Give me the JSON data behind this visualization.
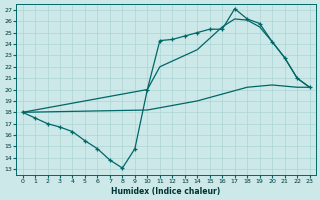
{
  "xlabel": "Humidex (Indice chaleur)",
  "bg_color": "#cce8e8",
  "line_color": "#006666",
  "grid_color": "#aad4d4",
  "xlim": [
    -0.5,
    23.5
  ],
  "ylim": [
    12.5,
    27.5
  ],
  "yticks": [
    13,
    14,
    15,
    16,
    17,
    18,
    19,
    20,
    21,
    22,
    23,
    24,
    25,
    26,
    27
  ],
  "xticks": [
    0,
    1,
    2,
    3,
    4,
    5,
    6,
    7,
    8,
    9,
    10,
    11,
    12,
    13,
    14,
    15,
    16,
    17,
    18,
    19,
    20,
    21,
    22,
    23
  ],
  "line_marked_x": [
    0,
    1,
    2,
    3,
    4,
    5,
    6,
    7,
    8,
    9,
    10,
    11,
    12,
    13,
    14,
    15,
    16,
    17,
    18,
    19,
    20,
    21,
    22,
    23
  ],
  "line_marked_y": [
    18.0,
    17.5,
    17.0,
    16.7,
    16.3,
    15.5,
    14.8,
    13.8,
    13.1,
    14.8,
    20.0,
    24.3,
    24.4,
    24.7,
    25.0,
    25.3,
    25.3,
    27.1,
    26.2,
    25.8,
    24.2,
    22.8,
    21.0,
    20.2
  ],
  "line_upper_x": [
    0,
    10,
    11,
    12,
    13,
    14,
    15,
    16,
    17,
    18,
    19,
    20,
    21,
    22,
    23
  ],
  "line_upper_y": [
    18.0,
    20.0,
    22.0,
    22.5,
    23.0,
    23.5,
    24.5,
    25.5,
    26.2,
    26.1,
    25.5,
    24.2,
    22.8,
    21.0,
    20.2
  ],
  "line_lower_x": [
    0,
    10,
    11,
    12,
    13,
    14,
    15,
    16,
    17,
    18,
    19,
    20,
    21,
    22,
    23
  ],
  "line_lower_y": [
    18.0,
    18.2,
    18.4,
    18.6,
    18.8,
    19.0,
    19.3,
    19.6,
    19.9,
    20.2,
    20.3,
    20.4,
    20.3,
    20.2,
    20.2
  ]
}
